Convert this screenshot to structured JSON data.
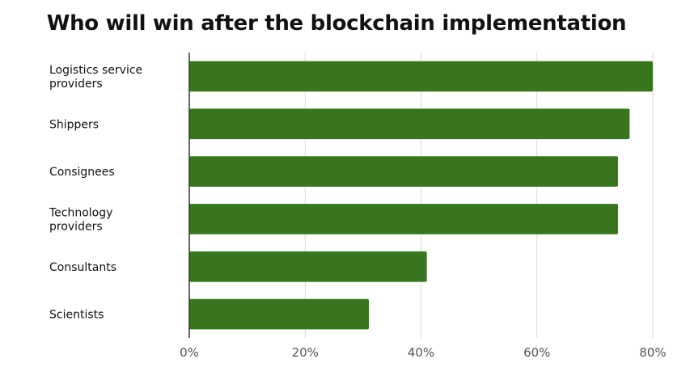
{
  "chart_data": {
    "type": "bar",
    "orientation": "horizontal",
    "title": "Who will win after the blockchain implementation",
    "categories": [
      "Logistics service providers",
      "Shippers",
      "Consignees",
      "Technology providers",
      "Consultants",
      "Scientists"
    ],
    "values": [
      80,
      76,
      74,
      74,
      41,
      31
    ],
    "xlim": [
      0,
      80
    ],
    "xticks": [
      0,
      20,
      40,
      60,
      80
    ],
    "xtick_labels": [
      "0%",
      "20%",
      "40%",
      "60%",
      "80%"
    ],
    "xlabel": "",
    "ylabel": "",
    "grid": true,
    "bar_color": "#38761d",
    "grid_color": "#d9d9d9",
    "axis_color": "#333333"
  }
}
